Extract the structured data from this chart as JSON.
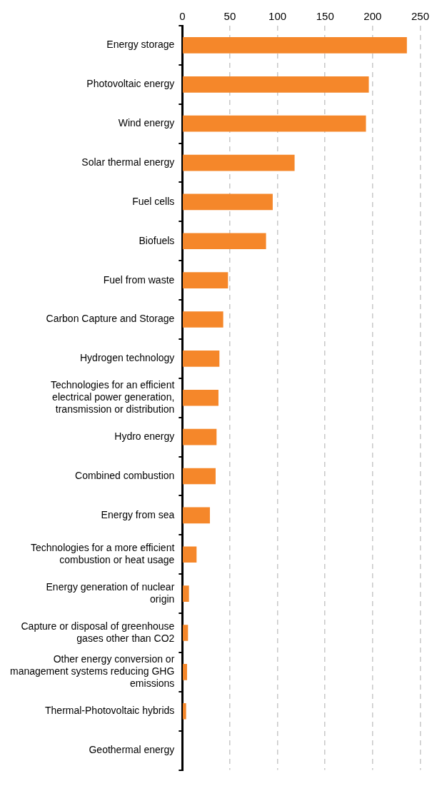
{
  "chart_data": {
    "type": "bar",
    "orientation": "horizontal",
    "categories": [
      "Energy storage",
      "Photovoltaic energy",
      "Wind energy",
      "Solar thermal energy",
      "Fuel cells",
      "Biofuels",
      "Fuel from waste",
      "Carbon Capture and Storage",
      "Hydrogen technology",
      "Technologies for an efficient electrical power generation, transmission or distribution",
      "Hydro energy",
      "Combined combustion",
      "Energy from sea",
      "Technologies for a more efficient combustion or heat usage",
      "Energy generation of nuclear origin",
      "Capture or disposal of greenhouse gases other than CO2",
      "Other energy conversion or management systems reducing GHG emissions",
      "Thermal-Photovoltaic hybrids",
      "Geothermal energy"
    ],
    "values": [
      236,
      196,
      193,
      118,
      95,
      88,
      48,
      43,
      39,
      38,
      36,
      35,
      29,
      15,
      7,
      6,
      5,
      4,
      0
    ],
    "color": "#f5872a",
    "xlim": [
      0,
      250
    ],
    "xticks": [
      0,
      50,
      100,
      150,
      200,
      250
    ],
    "grid": "x",
    "legend": false
  }
}
